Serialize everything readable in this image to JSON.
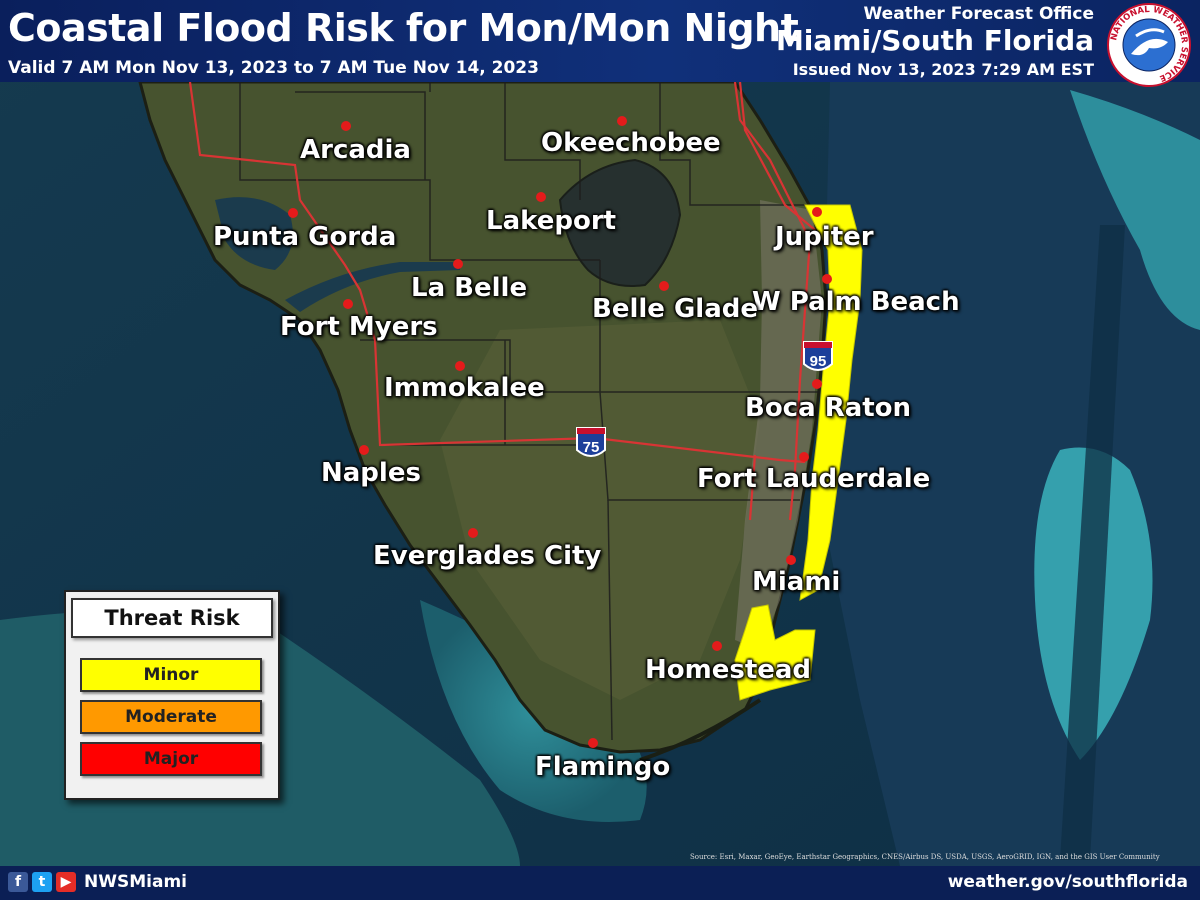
{
  "header": {
    "title": "Coastal Flood Risk for Mon/Mon Night",
    "valid": "Valid 7 AM Mon Nov 13, 2023 to 7 AM Tue Nov 14, 2023",
    "office_label": "Weather Forecast Office",
    "office_name": "Miami/South Florida",
    "issued": "Issued Nov 13, 2023 7:29 AM EST"
  },
  "logo": {
    "ring_text": "NATIONAL WEATHER SERVICE"
  },
  "cities": [
    {
      "name": "Arcadia"
    },
    {
      "name": "Okeechobee"
    },
    {
      "name": "Punta Gorda"
    },
    {
      "name": "Lakeport"
    },
    {
      "name": "Jupiter"
    },
    {
      "name": "La Belle"
    },
    {
      "name": "W Palm Beach"
    },
    {
      "name": "Belle Glade"
    },
    {
      "name": "Fort Myers"
    },
    {
      "name": "Immokalee"
    },
    {
      "name": "Boca Raton"
    },
    {
      "name": "Naples"
    },
    {
      "name": "Fort Lauderdale"
    },
    {
      "name": "Everglades City"
    },
    {
      "name": "Miami"
    },
    {
      "name": "Homestead"
    },
    {
      "name": "Flamingo"
    }
  ],
  "highways": [
    {
      "number": "75"
    },
    {
      "number": "95"
    }
  ],
  "legend": {
    "title": "Threat Risk",
    "levels": [
      {
        "label": "Minor",
        "color": "#ffff00"
      },
      {
        "label": "Moderate",
        "color": "#ff9900"
      },
      {
        "label": "Major",
        "color": "#ff0000"
      }
    ]
  },
  "threat_areas": [
    {
      "zone": "Palm Beach / Broward coast",
      "level": "Minor"
    },
    {
      "zone": "Miami-Dade coast",
      "level": "Minor"
    }
  ],
  "colors": {
    "header_bg": "#10307a",
    "footer_bg": "#0b1f55",
    "city_marker": "#e41b1b",
    "road": "#d83434",
    "minor": "#ffff00"
  },
  "footer": {
    "handle": "NWSMiami",
    "website": "weather.gov/southflorida",
    "credit": "Source: Esri, Maxar, GeoEye, Earthstar Geographics, CNES/Airbus DS, USDA, USGS, AeroGRID, IGN, and the GIS User Community",
    "social_icons": [
      "facebook-icon",
      "twitter-icon",
      "youtube-icon"
    ]
  }
}
